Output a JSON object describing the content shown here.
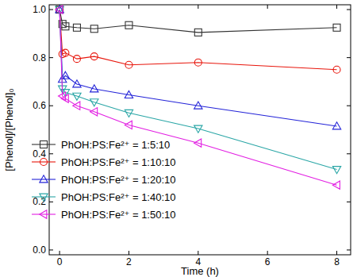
{
  "chart_data": {
    "type": "line",
    "x_label": "Time (h)",
    "y_label": "[Phenol]/[Phenol]₀",
    "x": [
      0,
      0.083,
      0.167,
      0.5,
      1,
      2,
      4,
      8
    ],
    "xlim": [
      -0.3,
      8.4
    ],
    "xticks": [
      0,
      2,
      4,
      6,
      8
    ],
    "ylim": [
      -0.02,
      1.02
    ],
    "yticks": [
      {
        "value": 0,
        "label": "0.0"
      },
      {
        "value": 0.2,
        "label": "0.2"
      },
      {
        "value": 0.4,
        "label": "0.4"
      },
      {
        "value": 0.6,
        "label": "0.6"
      },
      {
        "value": 0.8,
        "label": "0.8"
      },
      {
        "value": 1,
        "label": "1.0"
      }
    ],
    "grid": false,
    "legend": "center left",
    "series": [
      {
        "name": "PhOH:PS:Fe²⁺ = 1:5:10",
        "color": "#333333",
        "marker": "square",
        "line_style": "solid",
        "values": [
          1.0,
          0.94,
          0.93,
          0.925,
          0.92,
          0.935,
          0.905,
          0.925
        ]
      },
      {
        "name": "PhOH:PS:Fe²⁺ = 1:10:10",
        "color": "#e8160c",
        "marker": "circle",
        "line_style": "solid",
        "values": [
          1.0,
          0.815,
          0.82,
          0.795,
          0.805,
          0.77,
          0.78,
          0.75
        ]
      },
      {
        "name": "PhOH:PS:Fe²⁺ = 1:20:10",
        "color": "#2424d8",
        "marker": "triangle-up",
        "line_style": "solid",
        "values": [
          1.0,
          0.71,
          0.725,
          0.69,
          0.67,
          0.645,
          0.6,
          0.515
        ]
      },
      {
        "name": "PhOH:PS:Fe²⁺ = 1:40:10",
        "color": "#2aa6a6",
        "marker": "triangle-down",
        "line_style": "solid",
        "values": [
          1.0,
          0.67,
          0.655,
          0.64,
          0.615,
          0.57,
          0.505,
          0.335
        ]
      },
      {
        "name": "PhOH:PS:Fe²⁺ = 1:50:10",
        "color": "#e21ee2",
        "marker": "triangle-left",
        "line_style": "solid",
        "values": [
          1.0,
          0.64,
          0.63,
          0.6,
          0.575,
          0.52,
          0.445,
          0.27
        ]
      }
    ]
  }
}
